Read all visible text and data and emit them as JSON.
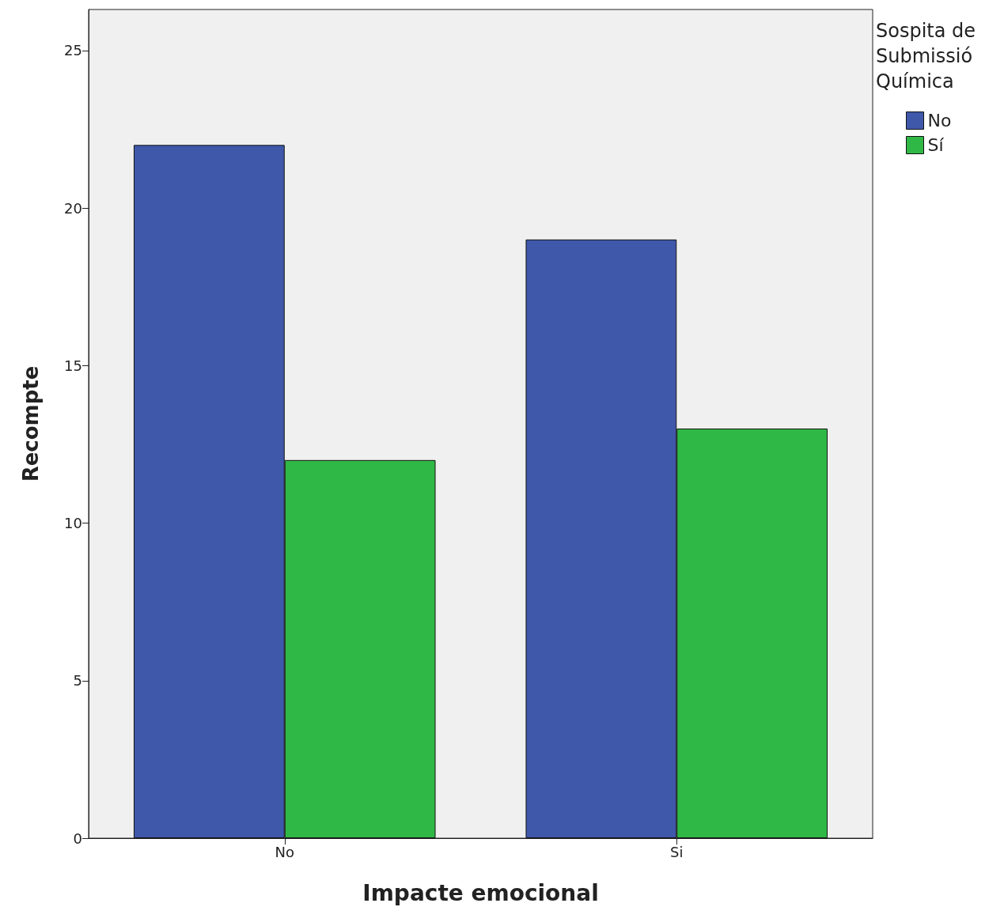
{
  "chart_data": {
    "type": "bar",
    "xlabel": "Impacte emocional",
    "ylabel": "Recompte",
    "legend_title": "Sospita de Submissió Química",
    "categories": [
      "No",
      "Si"
    ],
    "series": [
      {
        "name": "No",
        "color": "#3f58aa",
        "values": [
          22,
          19
        ]
      },
      {
        "name": "Sí",
        "color": "#30b847",
        "values": [
          12,
          13
        ]
      }
    ],
    "ylim": [
      0,
      26.3
    ],
    "yticks": [
      0,
      5,
      10,
      15,
      20,
      25
    ],
    "grid": false,
    "legend": "top right"
  }
}
